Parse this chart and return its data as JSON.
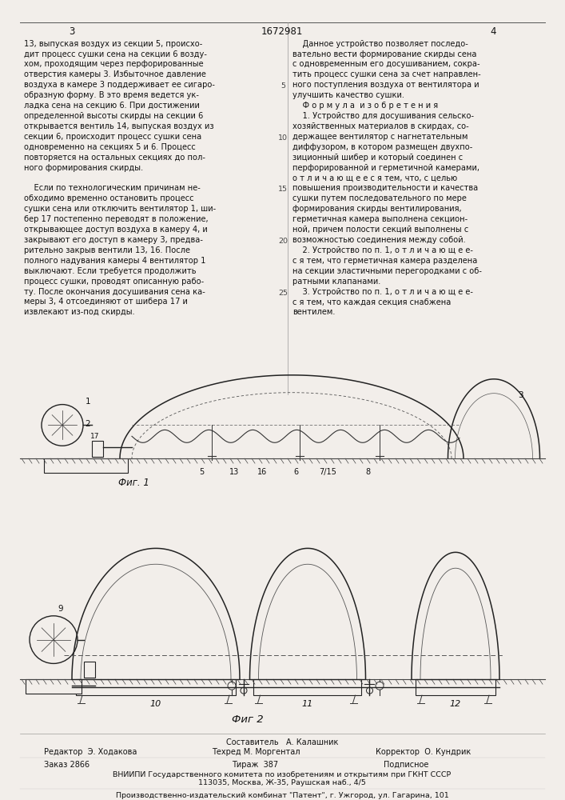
{
  "bg_color": "#f2eeea",
  "page_num_left": "3",
  "page_num_center": "1672981",
  "page_num_right": "4",
  "left_col_text": [
    "13, выпуская воздух из секции 5, происхо-",
    "дит процесс сушки сена на секции 6 возду-",
    "хом, проходящим через перфорированные",
    "отверстия камеры 3. Избыточное давление",
    "воздуха в камере 3 поддерживает ее сигаро-",
    "образную форму. В это время ведется ук-",
    "ладка сена на секцию 6. При достижении",
    "определенной высоты скирды на секции 6",
    "открывается вентиль 14, выпуская воздух из",
    "секции 6, происходит процесс сушки сена",
    "одновременно на секциях 5 и 6. Процесс",
    "повторяется на остальных секциях до пол-",
    "ного формирования скирды.",
    "",
    "    Если по технологическим причинам не-",
    "обходимо временно остановить процесс",
    "сушки сена или отключить вентилятор 1, ши-",
    "бер 17 постепенно переводят в положение,",
    "открывающее доступ воздуха в камеру 4, и",
    "закрывают его доступ в камеру 3, предва-",
    "рительно закрыв вентили 13, 16. После",
    "полного надувания камеры 4 вентилятор 1",
    "выключают. Если требуется продолжить",
    "процесс сушки, проводят описанную рабо-",
    "ту. После окончания досушивания сена ка-",
    "меры 3, 4 отсоединяют от шибера 17 и",
    "извлекают из-под скирды."
  ],
  "right_col_text": [
    "    Данное устройство позволяет последо-",
    "вательно вести формирование скирды сена",
    "с одновременным его досушиванием, сокра-",
    "тить процесс сушки сена за счет направлен-",
    "ного поступления воздуха от вентилятора и",
    "улучшить качество сушки.",
    "    Ф о р м у л а  и з о б р е т е н и я",
    "    1. Устройство для досушивания сельско-",
    "хозяйственных материалов в скирдах, со-",
    "держащее вентилятор с нагнетательным",
    "диффузором, в котором размещен двухпо-",
    "зиционный шибер и который соединен с",
    "перфорированной и герметичной камерами,",
    "о т л и ч а ю щ е е с я тем, что, с целью",
    "повышения производительности и качества",
    "сушки путем последовательного по мере",
    "формирования скирды вентилирования,",
    "герметичная камера выполнена секцион-",
    "ной, причем полости секций выполнены с",
    "возможностью соединения между собой.",
    "    2. Устройство по п. 1, о т л и ч а ю щ е е-",
    "с я тем, что герметичная камера разделена",
    "на секции эластичными перегородками с об-",
    "ратными клапанами.",
    "    3. Устройство по п. 1, о т л и ч а ю щ е е-",
    "с я тем, что каждая секция снабжена",
    "вентилем."
  ],
  "right_col_line_numbers": [
    5,
    10,
    15,
    20,
    25
  ],
  "fig1_label": "Фиг. 1",
  "fig2_label": "Фиг 2",
  "footer_composer": "Составитель   А. Калашник",
  "footer_editor": "Редактор  Э. Ходакова",
  "footer_techred": "Техред М. Моргентал",
  "footer_corrector": "Корректор  О. Кундрик",
  "footer_order": "Заказ 2866",
  "footer_tirazh": "Тираж  387",
  "footer_podpisnoe": "Подписное",
  "footer_institute": "ВНИИПИ Государственного комитета по изобретениям и открытиям при ГКНТ СССР",
  "footer_address": "113035, Москва, Ж-35, Раушская наб., 4/5",
  "footer_plant": "Производственно-издательский комбинат \"Патент\", г. Ужгород, ул. Гагарина, 101"
}
